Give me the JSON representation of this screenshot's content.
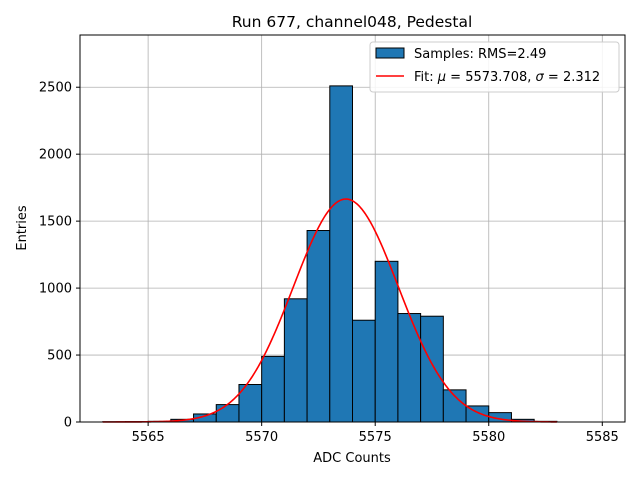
{
  "chart_data": {
    "type": "bar",
    "title": "Run 677, channel048, Pedestal",
    "xlabel": "ADC Counts",
    "ylabel": "Entries",
    "xlim": [
      5562,
      5586
    ],
    "ylim": [
      0,
      2890
    ],
    "xticks": [
      5565,
      5570,
      5575,
      5580,
      5585
    ],
    "yticks": [
      0,
      500,
      1000,
      1500,
      2000,
      2500
    ],
    "grid": true,
    "bar_color": "#1f77b4",
    "fit_color": "#ff0000",
    "legend_position": "top-right",
    "histogram": {
      "name": "Samples: RMS=2.49",
      "bin_width": 1,
      "bins": [
        {
          "left": 5563,
          "count": 2
        },
        {
          "left": 5564,
          "count": 3
        },
        {
          "left": 5565,
          "count": 5
        },
        {
          "left": 5566,
          "count": 20
        },
        {
          "left": 5567,
          "count": 60
        },
        {
          "left": 5568,
          "count": 130
        },
        {
          "left": 5569,
          "count": 280
        },
        {
          "left": 5570,
          "count": 490
        },
        {
          "left": 5571,
          "count": 920
        },
        {
          "left": 5572,
          "count": 1430
        },
        {
          "left": 5573,
          "count": 2510
        },
        {
          "left": 5574,
          "count": 760
        },
        {
          "left": 5575,
          "count": 1200
        },
        {
          "left": 5576,
          "count": 810
        },
        {
          "left": 5577,
          "count": 790
        },
        {
          "left": 5578,
          "count": 240
        },
        {
          "left": 5579,
          "count": 120
        },
        {
          "left": 5580,
          "count": 70
        },
        {
          "left": 5581,
          "count": 20
        },
        {
          "left": 5582,
          "count": 5
        }
      ]
    },
    "fit": {
      "legend_prefix": "Fit: ",
      "mu_symbol": "μ",
      "sigma_symbol": "σ",
      "mu": "5573.708",
      "sigma": "2.312",
      "amplitude": 1665,
      "x_range": [
        5563,
        5583
      ]
    }
  }
}
